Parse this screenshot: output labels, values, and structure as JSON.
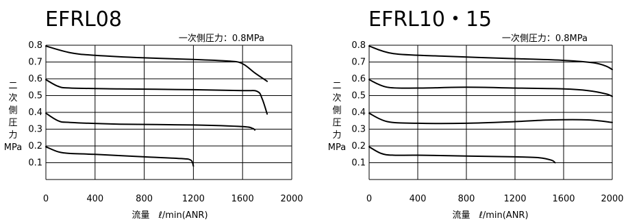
{
  "chart_data": [
    {
      "type": "line",
      "title": "EFRL08",
      "note": "一次側圧力：0.8MPa",
      "xlabel": "流量　ℓ/min(ANR)",
      "ylabel_chars": [
        "二",
        "次",
        "側",
        "圧",
        "力"
      ],
      "ylabel_unit": "MPa",
      "xlim": [
        0,
        2000
      ],
      "ylim": [
        0,
        0.8
      ],
      "x_ticks": [
        "0",
        "400",
        "800",
        "1200",
        "1600",
        "2000"
      ],
      "y_ticks": [
        "0.1",
        "0.2",
        "0.3",
        "0.4",
        "0.5",
        "0.6",
        "0.7",
        "0.8"
      ],
      "grid": true,
      "series": [
        {
          "points": [
            [
              0,
              0.795
            ],
            [
              200,
              0.755
            ],
            [
              400,
              0.74
            ],
            [
              800,
              0.725
            ],
            [
              1200,
              0.715
            ],
            [
              1500,
              0.705
            ],
            [
              1600,
              0.69
            ],
            [
              1700,
              0.635
            ],
            [
              1800,
              0.585
            ]
          ]
        },
        {
          "points": [
            [
              0,
              0.595
            ],
            [
              100,
              0.555
            ],
            [
              200,
              0.545
            ],
            [
              600,
              0.54
            ],
            [
              1200,
              0.535
            ],
            [
              1600,
              0.53
            ],
            [
              1720,
              0.525
            ],
            [
              1760,
              0.48
            ],
            [
              1800,
              0.39
            ]
          ]
        },
        {
          "points": [
            [
              0,
              0.395
            ],
            [
              100,
              0.35
            ],
            [
              200,
              0.34
            ],
            [
              600,
              0.33
            ],
            [
              1200,
              0.325
            ],
            [
              1600,
              0.315
            ],
            [
              1680,
              0.305
            ],
            [
              1700,
              0.295
            ]
          ]
        },
        {
          "points": [
            [
              0,
              0.195
            ],
            [
              100,
              0.165
            ],
            [
              200,
              0.155
            ],
            [
              400,
              0.15
            ],
            [
              800,
              0.135
            ],
            [
              1100,
              0.125
            ],
            [
              1180,
              0.115
            ],
            [
              1200,
              0.08
            ]
          ]
        }
      ]
    },
    {
      "type": "line",
      "title": "EFRL10・15",
      "note": "一次側圧力：0.8MPa",
      "xlabel": "流量　ℓ/min(ANR)",
      "ylabel_chars": [
        "二",
        "次",
        "側",
        "圧",
        "力"
      ],
      "ylabel_unit": "MPa",
      "xlim": [
        0,
        2000
      ],
      "ylim": [
        0,
        0.8
      ],
      "x_ticks": [
        "0",
        "400",
        "800",
        "1200",
        "1600",
        "2000"
      ],
      "y_ticks": [
        "0.1",
        "0.2",
        "0.3",
        "0.4",
        "0.5",
        "0.6",
        "0.7",
        "0.8"
      ],
      "grid": true,
      "series": [
        {
          "points": [
            [
              0,
              0.795
            ],
            [
              200,
              0.75
            ],
            [
              600,
              0.735
            ],
            [
              1200,
              0.72
            ],
            [
              1600,
              0.71
            ],
            [
              1850,
              0.695
            ],
            [
              1950,
              0.675
            ],
            [
              2000,
              0.655
            ]
          ]
        },
        {
          "points": [
            [
              0,
              0.595
            ],
            [
              150,
              0.55
            ],
            [
              400,
              0.545
            ],
            [
              800,
              0.55
            ],
            [
              1200,
              0.545
            ],
            [
              1600,
              0.54
            ],
            [
              1800,
              0.53
            ],
            [
              1950,
              0.51
            ],
            [
              2000,
              0.495
            ]
          ]
        },
        {
          "points": [
            [
              0,
              0.395
            ],
            [
              150,
              0.345
            ],
            [
              400,
              0.335
            ],
            [
              800,
              0.335
            ],
            [
              1200,
              0.345
            ],
            [
              1500,
              0.355
            ],
            [
              1800,
              0.355
            ],
            [
              2000,
              0.34
            ]
          ]
        },
        {
          "points": [
            [
              0,
              0.195
            ],
            [
              100,
              0.155
            ],
            [
              200,
              0.145
            ],
            [
              400,
              0.145
            ],
            [
              800,
              0.14
            ],
            [
              1200,
              0.135
            ],
            [
              1400,
              0.13
            ],
            [
              1500,
              0.115
            ],
            [
              1530,
              0.1
            ]
          ]
        }
      ]
    }
  ]
}
